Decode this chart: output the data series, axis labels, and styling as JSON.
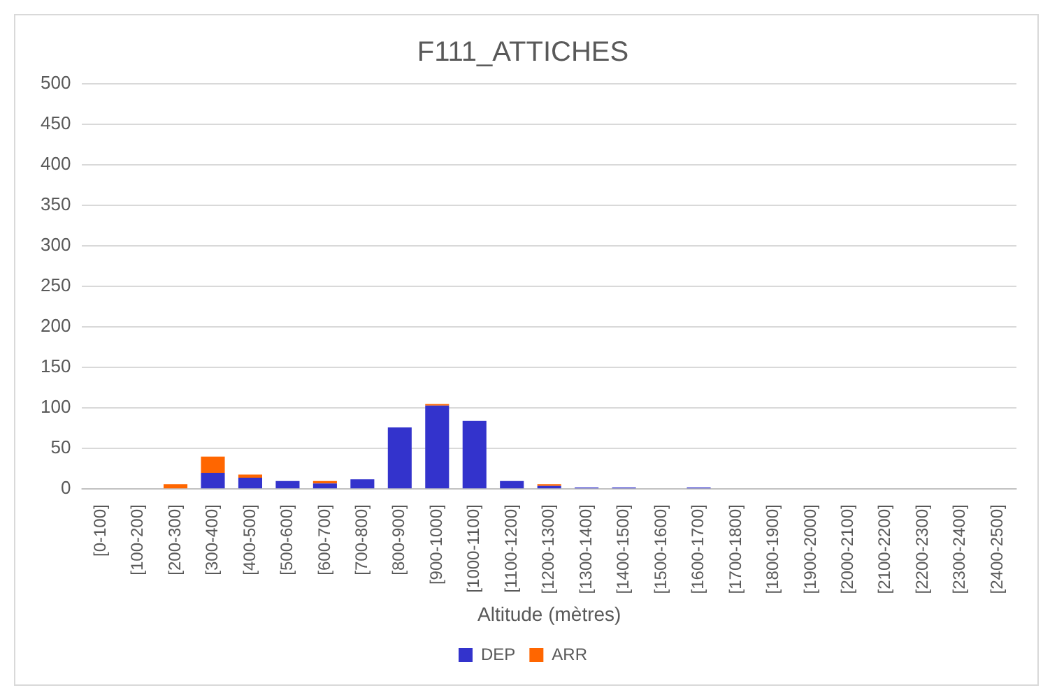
{
  "chart_data": {
    "type": "bar",
    "title": "F111_ATTICHES",
    "xlabel": "Altitude (mètres)",
    "categories": [
      "[0-100]",
      "[100-200]",
      "[200-300]",
      "[300-400]",
      "[400-500]",
      "[500-600]",
      "[600-700]",
      "[700-800]",
      "[800-900]",
      "[900-1000]",
      "[1000-1100]",
      "[1100-1200]",
      "[1200-1300]",
      "[1300-1400]",
      "[1400-1500]",
      "[1500-1600]",
      "[1600-1700]",
      "[1700-1800]",
      "[1800-1900]",
      "[1900-2000]",
      "[2000-2100]",
      "[2100-2200]",
      "[2200-2300]",
      "[2300-2400]",
      "[2400-2500]"
    ],
    "series": [
      {
        "name": "DEP",
        "color": "#3333cc",
        "values": [
          0,
          0,
          0,
          20,
          14,
          10,
          7,
          12,
          76,
          103,
          84,
          10,
          4,
          2,
          2,
          0,
          2,
          0,
          0,
          0,
          0,
          0,
          0,
          0,
          0
        ]
      },
      {
        "name": "ARR",
        "color": "#ff6600",
        "values": [
          0,
          0,
          6,
          20,
          4,
          0,
          3,
          0,
          0,
          2,
          0,
          0,
          2,
          0,
          0,
          0,
          0,
          0,
          0,
          0,
          0,
          0,
          0,
          0,
          0
        ]
      }
    ],
    "stacked": true,
    "ylim": [
      0,
      500
    ],
    "yticks": [
      0,
      50,
      100,
      150,
      200,
      250,
      300,
      350,
      400,
      450,
      500
    ],
    "grid": "y",
    "legend": "bottom"
  }
}
